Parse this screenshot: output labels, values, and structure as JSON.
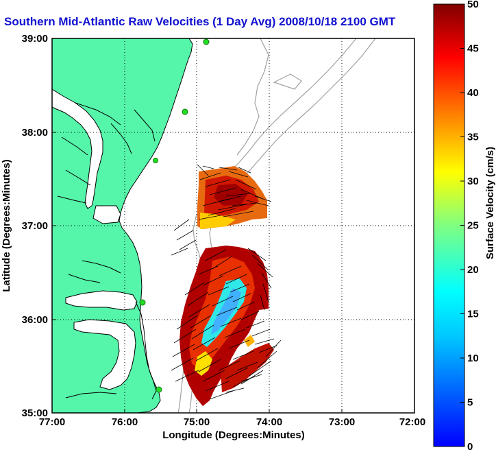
{
  "title": "Southern Mid-Atlantic Raw Velocities (1 Day Avg) 2008/10/18 2100 GMT",
  "x_axis": {
    "label": "Longitude (Degrees:Minutes)",
    "ticks": [
      "77:00",
      "76:00",
      "75:00",
      "74:00",
      "73:00",
      "72:00"
    ]
  },
  "y_axis": {
    "label": "Latitude (Degrees:Minutes)",
    "ticks": [
      "39:00",
      "38:00",
      "37:00",
      "36:00",
      "35:00"
    ]
  },
  "colorbar": {
    "label": "Surface Velocity (cm/s)",
    "ticks": [
      "50",
      "45",
      "40",
      "35",
      "30",
      "25",
      "20",
      "15",
      "10",
      "5",
      "0"
    ],
    "range": [
      0,
      50
    ]
  },
  "map": {
    "lon_range": [
      -77,
      -72
    ],
    "lat_range": [
      35,
      39
    ],
    "grid": true,
    "land_color": "#55f5aa",
    "coastline_color": "#000000",
    "bathymetry_color": "#a0a0a0",
    "station_color": "#22dd22",
    "stations": [
      {
        "lon": -74.9,
        "lat": 39.0
      },
      {
        "lon": -75.16,
        "lat": 38.22
      },
      {
        "lon": -75.57,
        "lat": 37.75
      },
      {
        "lon": -75.7,
        "lat": 36.17
      },
      {
        "lon": -75.52,
        "lat": 35.23
      }
    ]
  }
}
